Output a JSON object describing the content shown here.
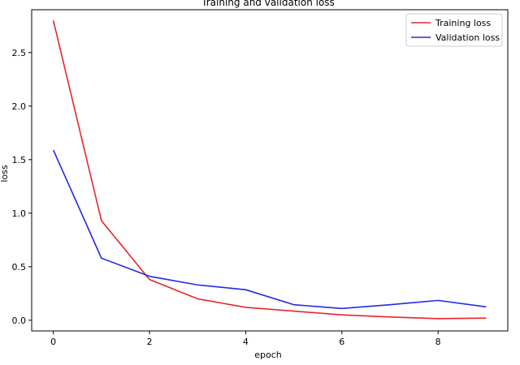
{
  "chart_data": {
    "type": "line",
    "title": "Training and validation loss",
    "xlabel": "epoch",
    "ylabel": "loss",
    "x": [
      0,
      1,
      2,
      3,
      4,
      5,
      6,
      7,
      8,
      9
    ],
    "series": [
      {
        "name": "Training loss",
        "color": "#e8262a",
        "values": [
          2.8,
          0.93,
          0.38,
          0.2,
          0.12,
          0.085,
          0.05,
          0.03,
          0.015,
          0.02
        ]
      },
      {
        "name": "Validation loss",
        "color": "#2626e8",
        "values": [
          1.59,
          0.58,
          0.41,
          0.33,
          0.285,
          0.145,
          0.11,
          0.145,
          0.185,
          0.125
        ]
      }
    ],
    "xlim": [
      -0.45,
      9.45
    ],
    "ylim": [
      -0.1,
      2.9
    ],
    "xticks": [
      0,
      2,
      4,
      6,
      8
    ],
    "yticks": [
      0.0,
      0.5,
      1.0,
      1.5,
      2.0,
      2.5
    ],
    "xtick_labels": [
      "0",
      "2",
      "4",
      "6",
      "8"
    ],
    "ytick_labels": [
      "0.0",
      "0.5",
      "1.0",
      "1.5",
      "2.0",
      "2.5"
    ],
    "grid": false,
    "legend_position": "top-right"
  }
}
